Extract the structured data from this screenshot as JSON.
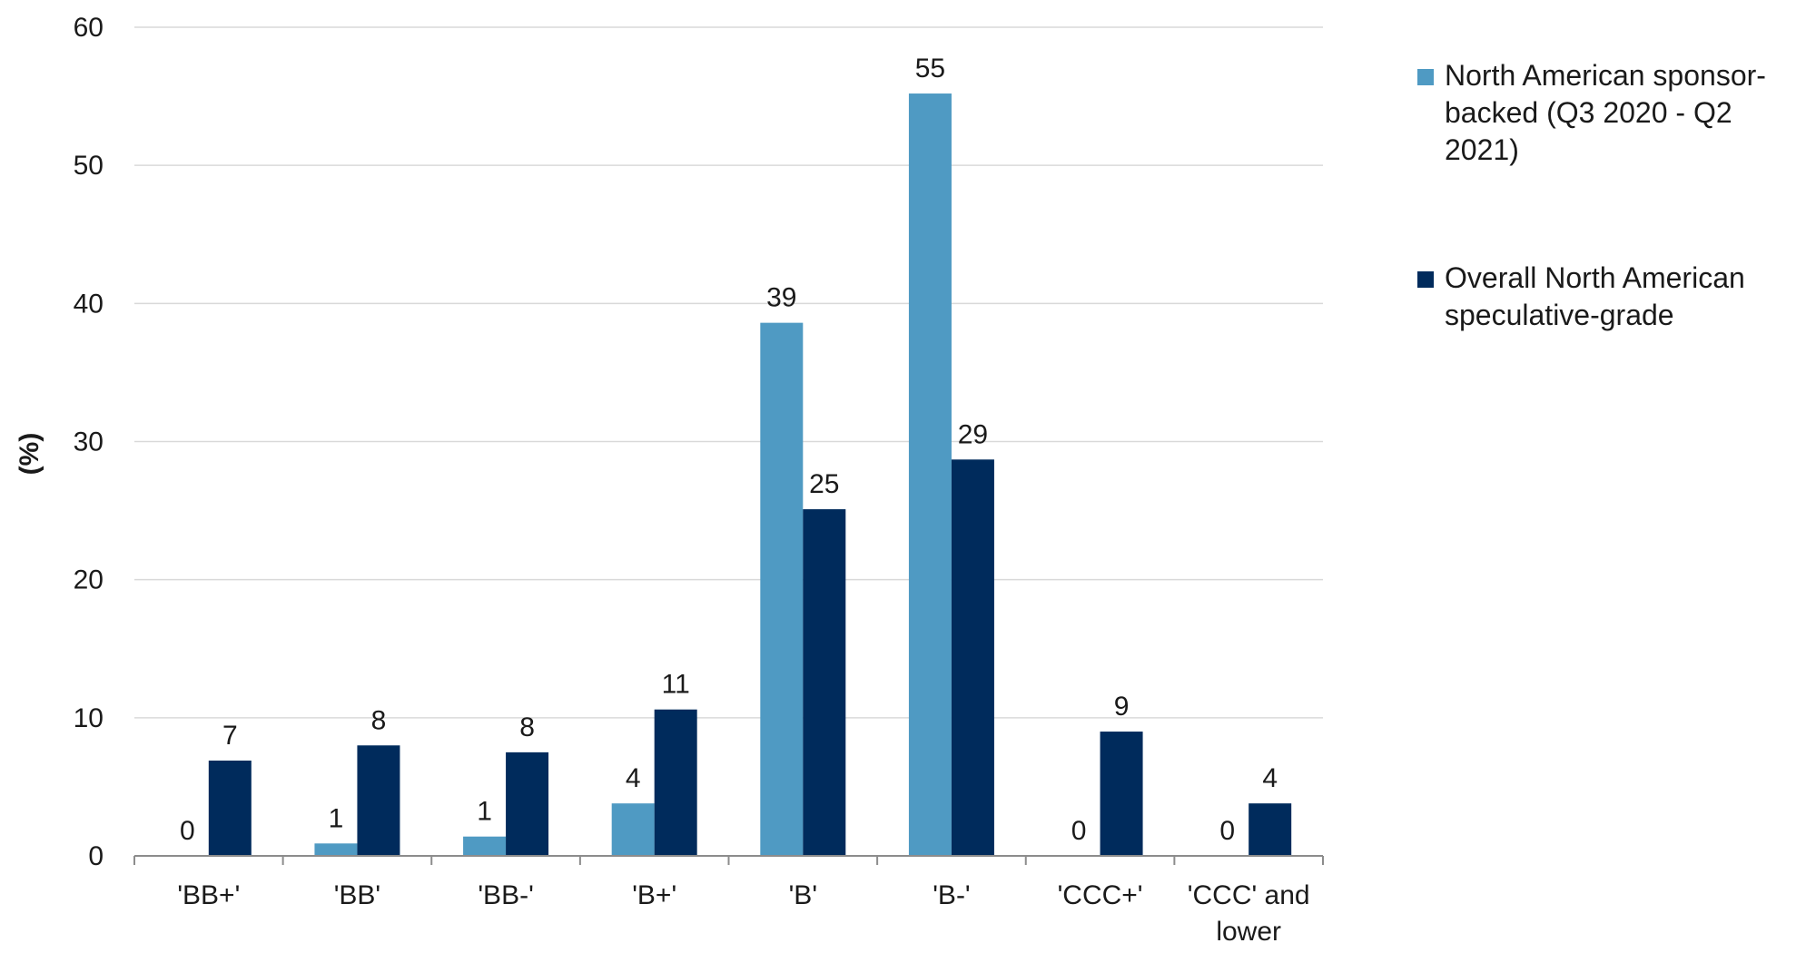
{
  "chart_data": {
    "type": "bar",
    "ylabel": "(%)",
    "xlabel": "",
    "ylim": [
      0,
      60
    ],
    "yticks": [
      "0",
      "10",
      "20",
      "30",
      "40",
      "50",
      "60"
    ],
    "grid": true,
    "legend_position": "right",
    "categories": [
      [
        "'BB+'"
      ],
      [
        "'BB'"
      ],
      [
        "'BB-'"
      ],
      [
        "'B+'"
      ],
      [
        "'B'"
      ],
      [
        "'B-'"
      ],
      [
        "'CCC+'"
      ],
      [
        "'CCC' and",
        "lower"
      ]
    ],
    "series": [
      {
        "name": [
          "North American sponsor-",
          "backed (Q3 2020 - Q2",
          "2021)"
        ],
        "color": "#4f9ac3",
        "values": [
          0,
          0.9,
          1.4,
          3.8,
          38.6,
          55.2,
          0,
          0
        ],
        "labels": [
          "0",
          "1",
          "1",
          "4",
          "39",
          "55",
          "0",
          "0"
        ]
      },
      {
        "name": [
          "Overall North American",
          "speculative-grade"
        ],
        "color": "#002b5c",
        "values": [
          6.9,
          8.0,
          7.5,
          10.6,
          25.1,
          28.7,
          9.0,
          3.8
        ],
        "labels": [
          "7",
          "8",
          "8",
          "11",
          "25",
          "29",
          "9",
          "4"
        ]
      }
    ]
  }
}
